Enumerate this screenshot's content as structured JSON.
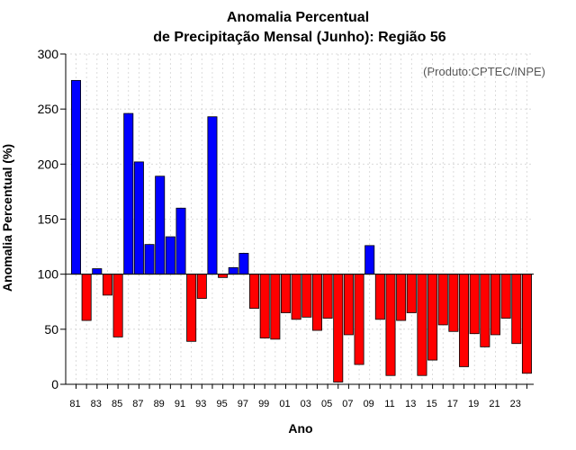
{
  "chart_data": {
    "type": "bar",
    "title": "Anomalia Percentual",
    "subtitle": "de Precipitação Mensal (Junho): Região 56",
    "xlabel": "Ano",
    "ylabel": "Anomalia Percentual (%)",
    "annotation": "(Produto:CPTEC/INPE)",
    "ylim": [
      0,
      300
    ],
    "yticks": [
      0,
      50,
      100,
      150,
      200,
      250,
      300
    ],
    "baseline": 100,
    "grid": true,
    "colors": {
      "above": "#0000ff",
      "below": "#ff0000",
      "edge": "#000000",
      "grid": "#d3d3d3",
      "axis": "#000000"
    },
    "categories": [
      "81",
      "82",
      "83",
      "84",
      "85",
      "86",
      "87",
      "88",
      "89",
      "90",
      "91",
      "92",
      "93",
      "94",
      "95",
      "96",
      "97",
      "98",
      "99",
      "00",
      "01",
      "02",
      "03",
      "04",
      "05",
      "06",
      "07",
      "08",
      "09",
      "10",
      "11",
      "12",
      "13",
      "14",
      "15",
      "16",
      "17",
      "18",
      "19",
      "20",
      "21",
      "22",
      "23",
      "24"
    ],
    "tick_labels": [
      "81",
      "83",
      "85",
      "87",
      "89",
      "91",
      "93",
      "95",
      "97",
      "99",
      "01",
      "03",
      "05",
      "07",
      "09",
      "11",
      "13",
      "15",
      "17",
      "19",
      "21",
      "23"
    ],
    "values": [
      276,
      58,
      105,
      81,
      43,
      246,
      202,
      127,
      189,
      134,
      160,
      39,
      78,
      243,
      97,
      106,
      119,
      69,
      42,
      41,
      65,
      59,
      61,
      49,
      60,
      2,
      45,
      18,
      126,
      59,
      8,
      58,
      65,
      8,
      22,
      54,
      48,
      16,
      46,
      34,
      45,
      60,
      37,
      10
    ]
  }
}
